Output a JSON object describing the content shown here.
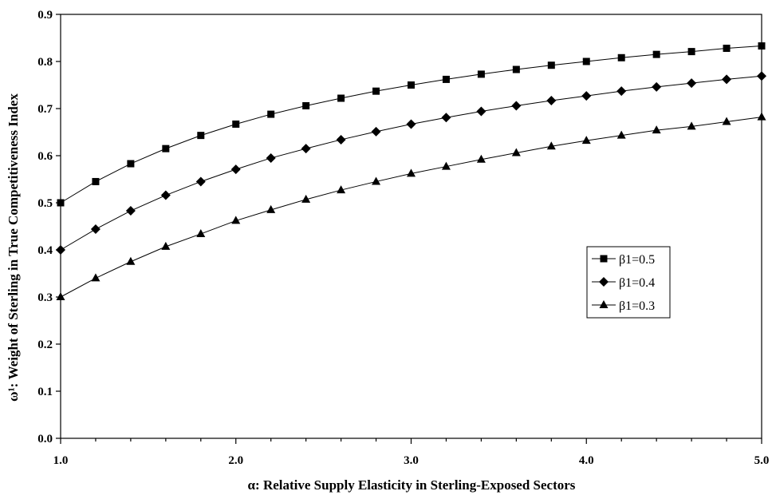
{
  "chart_data": {
    "type": "line",
    "title": "",
    "xlabel": "α: Relative Supply Elasticity in Sterling-Exposed Sectors",
    "ylabel": "ω¹: Weight of Sterling in True Competitiveness Index",
    "xlim": [
      1.0,
      5.0
    ],
    "ylim": [
      0.0,
      0.9
    ],
    "x_ticks": [
      "1.0",
      "2.0",
      "3.0",
      "4.0",
      "5.0"
    ],
    "y_ticks": [
      "0.0",
      "0.1",
      "0.2",
      "0.3",
      "0.4",
      "0.5",
      "0.6",
      "0.7",
      "0.8",
      "0.9"
    ],
    "grid": false,
    "legend_position": "right",
    "x": [
      1.0,
      1.2,
      1.4,
      1.6,
      1.8,
      2.0,
      2.2,
      2.4,
      2.6,
      2.8,
      3.0,
      3.2,
      3.4,
      3.6,
      3.8,
      4.0,
      4.2,
      4.4,
      4.6,
      4.8,
      5.0
    ],
    "series": [
      {
        "name": "β1=0.5",
        "marker": "square",
        "values": [
          0.5,
          0.545,
          0.583,
          0.615,
          0.643,
          0.667,
          0.688,
          0.706,
          0.722,
          0.737,
          0.75,
          0.762,
          0.773,
          0.783,
          0.792,
          0.8,
          0.808,
          0.815,
          0.821,
          0.828,
          0.833
        ]
      },
      {
        "name": "β1=0.4",
        "marker": "diamond",
        "values": [
          0.4,
          0.444,
          0.483,
          0.516,
          0.545,
          0.571,
          0.595,
          0.615,
          0.634,
          0.651,
          0.667,
          0.681,
          0.694,
          0.706,
          0.717,
          0.727,
          0.737,
          0.746,
          0.754,
          0.762,
          0.769
        ]
      },
      {
        "name": "β1=0.3",
        "marker": "triangle",
        "values": [
          0.3,
          0.34,
          0.375,
          0.407,
          0.434,
          0.462,
          0.485,
          0.507,
          0.527,
          0.545,
          0.562,
          0.577,
          0.592,
          0.606,
          0.62,
          0.632,
          0.643,
          0.654,
          0.662,
          0.672,
          0.682
        ]
      }
    ]
  }
}
